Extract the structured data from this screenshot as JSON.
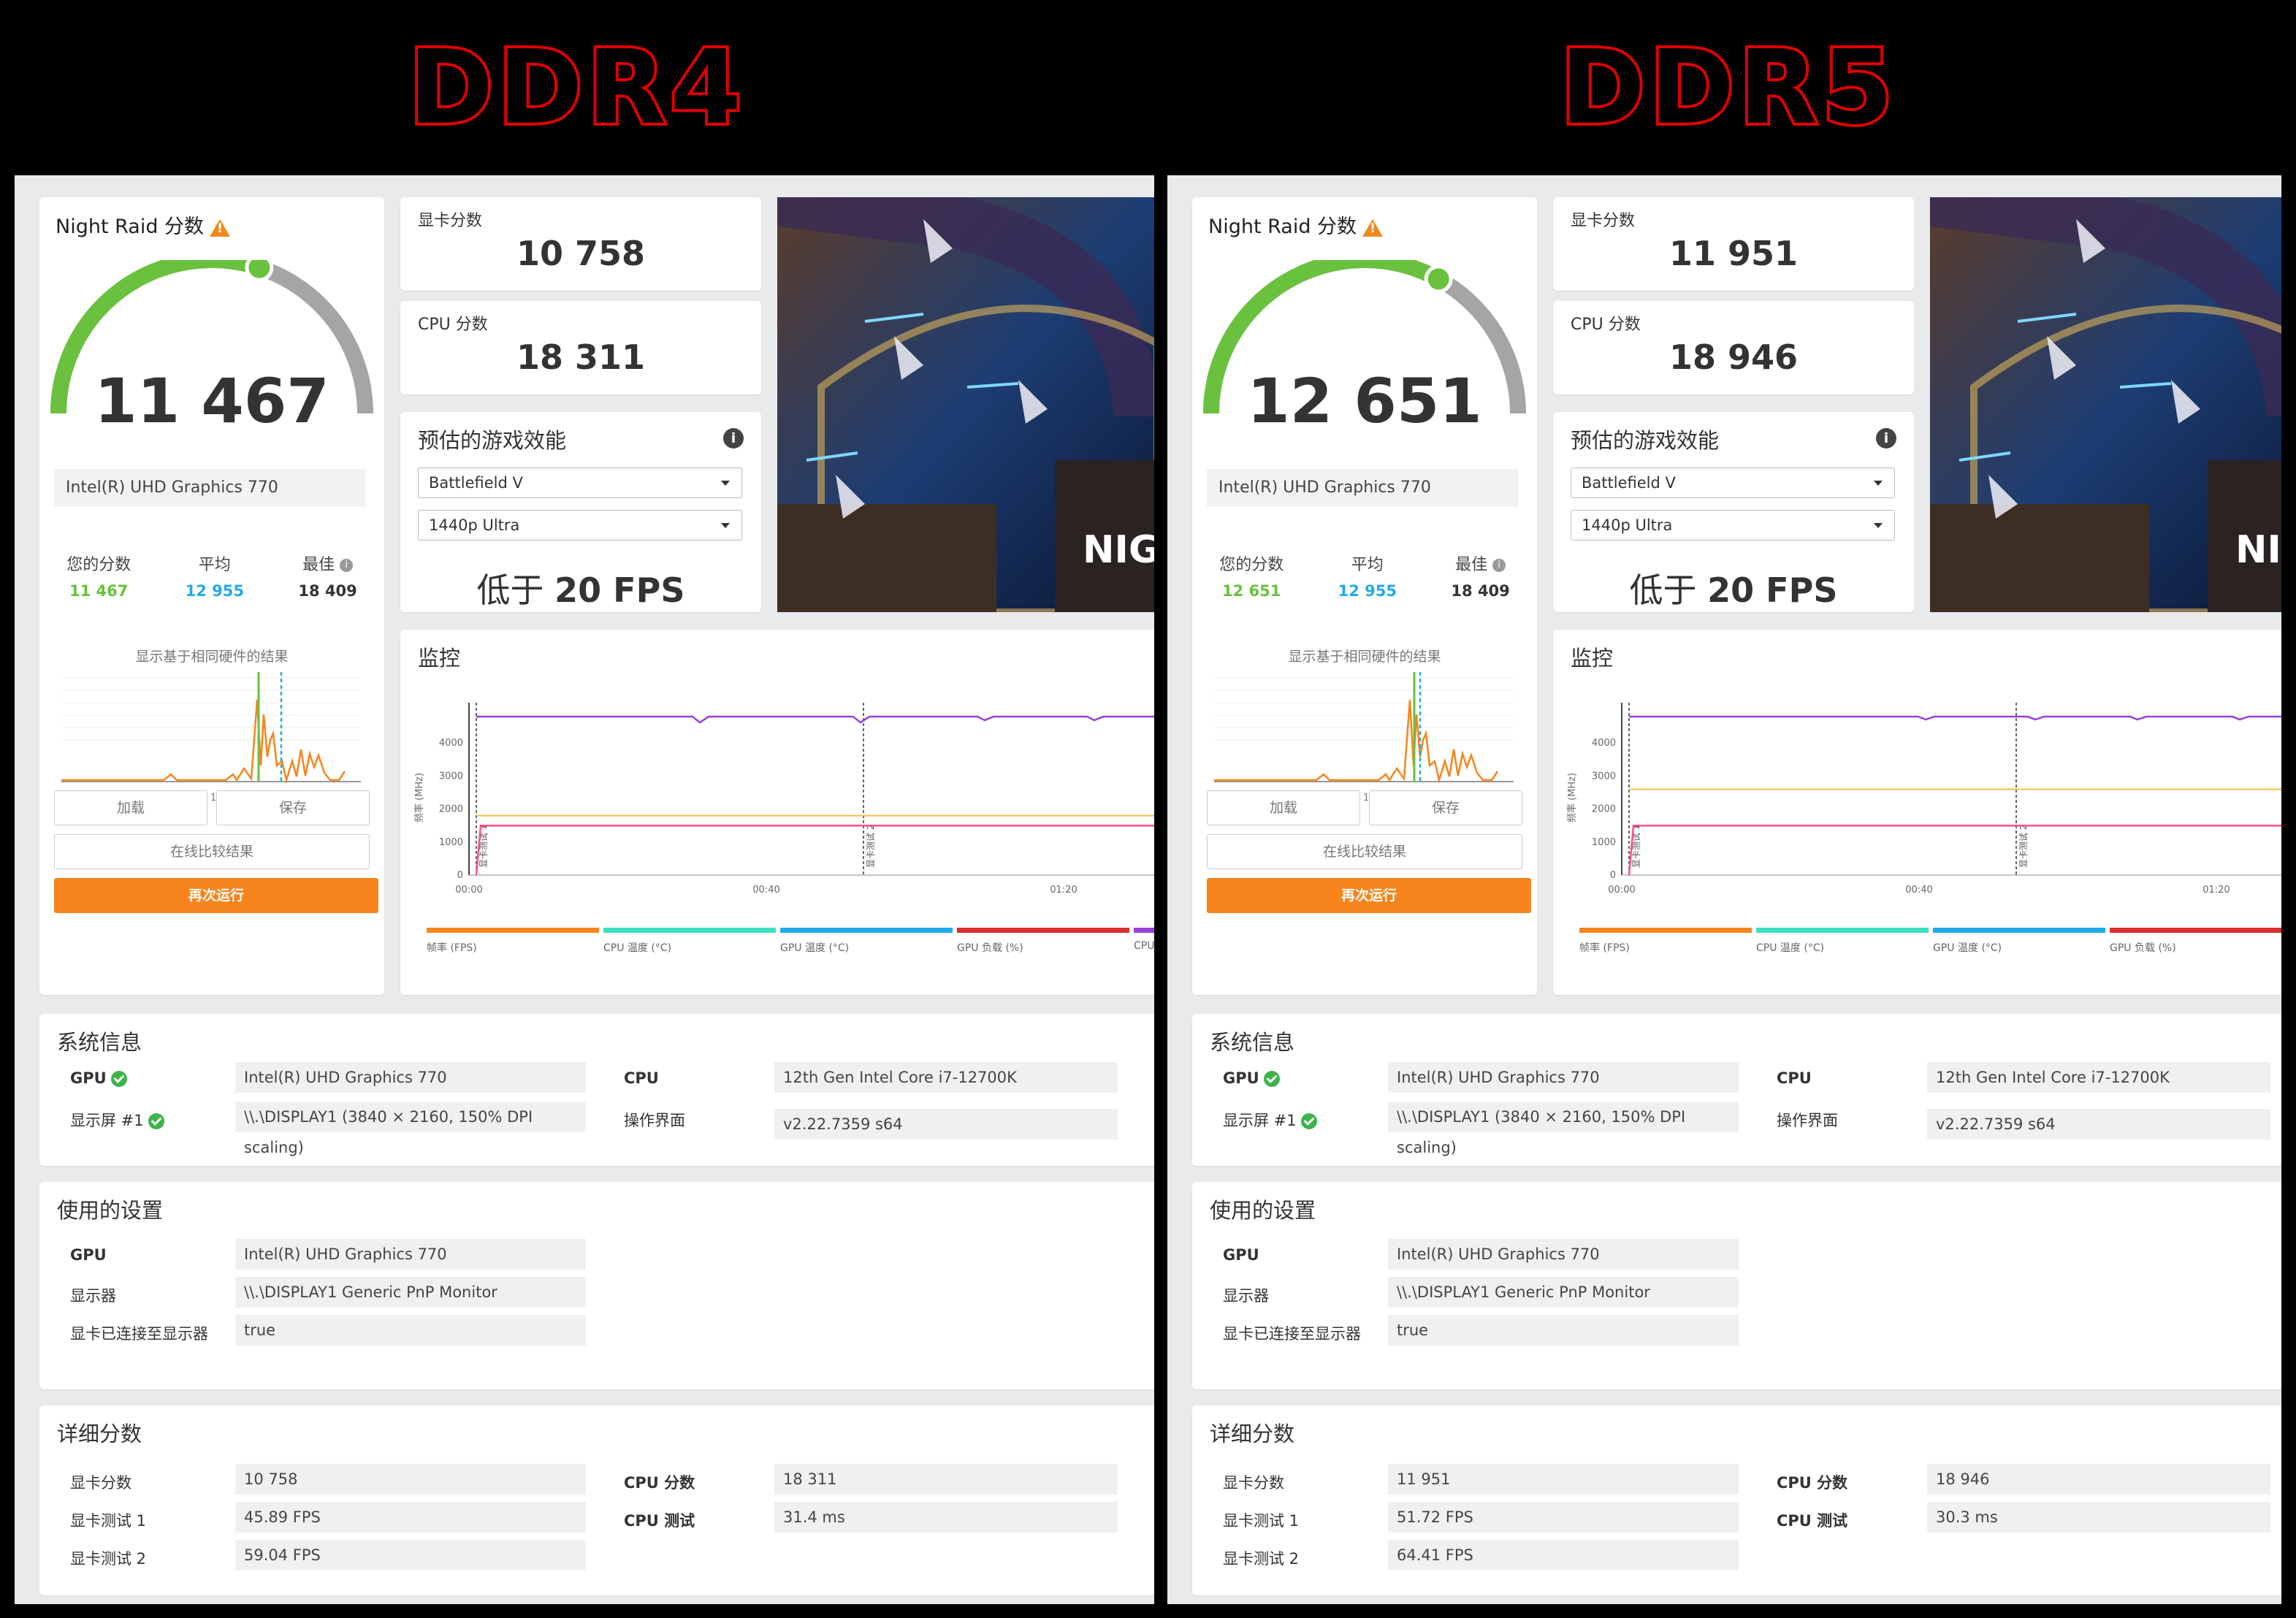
{
  "headers": {
    "left": "DDR4",
    "right": "DDR5"
  },
  "common": {
    "test_title": "Night Raid 分数",
    "gpu_score_label": "显卡分数",
    "cpu_score_label": "CPU 分数",
    "perf_title": "预估的游戏效能",
    "game": "Battlefield V",
    "preset": "1440p Ultra",
    "fps_prefix": "低于",
    "fps_value": "20 FPS",
    "screenshot_text": "NIG",
    "gpu_name": "Intel(R) UHD Graphics 770",
    "your_score_label": "您的分数",
    "avg_label": "平均",
    "best_label": "最佳",
    "best_value": "18 409",
    "avg_value": "12 955",
    "hist_caption": "显示基于相同硬件的结果",
    "hist_ticks": [
      "0",
      "5000",
      "10000",
      "15000"
    ],
    "load_btn": "加载",
    "save_btn": "保存",
    "compare_btn": "在线比较结果",
    "rerun_btn": "再次运行",
    "monitor_title": "监控",
    "y_axis_label": "频率 (MHz)",
    "y_ticks": [
      "0",
      "1000",
      "2000",
      "3000",
      "4000"
    ],
    "x_ticks": [
      "00:00",
      "00:40",
      "01:20"
    ],
    "marker1": "显卡测试 1",
    "marker2": "显卡测试 2",
    "legend": [
      {
        "label": "帧率 (FPS)",
        "color": "#f7841c"
      },
      {
        "label": "CPU 温度 (°C)",
        "color": "#3ee0c0"
      },
      {
        "label": "GPU 温度 (°C)",
        "color": "#22a9e8"
      },
      {
        "label": "GPU 负载 (%)",
        "color": "#d93030"
      },
      {
        "label": "CPU",
        "color": "#9b3fd9"
      }
    ],
    "sysinfo_title": "系统信息",
    "gpu_label": "GPU",
    "display_label": "显示屏 #1",
    "display_value": "\\\\.\\DISPLAY1 (3840 × 2160, 150% DPI scaling)",
    "cpu_label": "CPU",
    "cpu_value": "12th Gen Intel Core i7-12700K",
    "os_label": "操作界面",
    "os_value": "v2.22.7359 s64",
    "settings_title": "使用的设置",
    "monitor_label": "显示器",
    "monitor_value": "\\\\.\\DISPLAY1 Generic PnP Monitor",
    "connected_label": "显卡已连接至显示器",
    "connected_value": "true",
    "detail_title": "详细分数",
    "gt1_label": "显卡测试 1",
    "gt2_label": "显卡测试 2",
    "cpu_test_label": "CPU 测试"
  },
  "left": {
    "overall": "11 467",
    "gauge_fraction": 0.6,
    "gpu_score": "10 758",
    "cpu_score": "18 311",
    "your_score": "11 467",
    "gt1": "45.89 FPS",
    "gt2": "59.04 FPS",
    "cpu_test": "31.4 ms",
    "cpu_clock_mhz": 4800,
    "gpu_clock_mhz": 1800,
    "other_clock_mhz": 1500
  },
  "right": {
    "overall": "12 651",
    "gauge_fraction": 0.66,
    "gpu_score": "11 951",
    "cpu_score": "18 946",
    "your_score": "12 651",
    "gt1": "51.72 FPS",
    "gt2": "64.41 FPS",
    "cpu_test": "30.3 ms",
    "cpu_clock_mhz": 4800,
    "gpu_clock_mhz": 2600,
    "other_clock_mhz": 1500
  }
}
